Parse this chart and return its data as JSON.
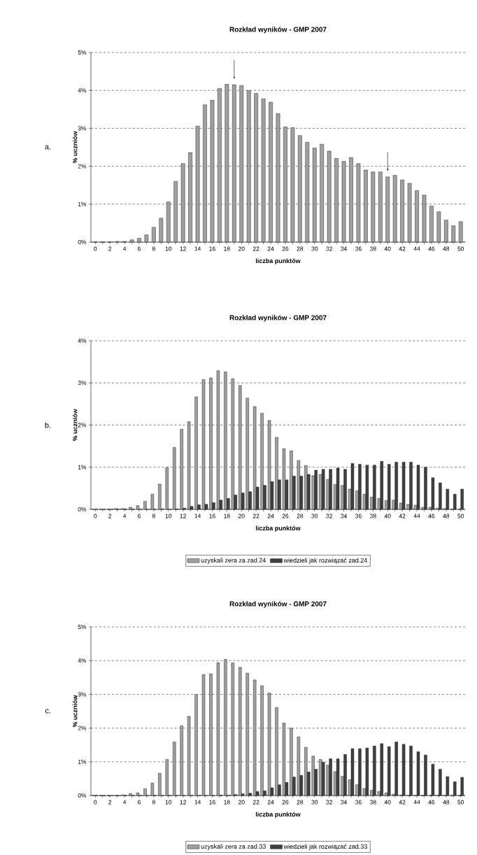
{
  "chart_data": [
    {
      "type": "bar",
      "title": "Rozkład wyników - GMP 2007",
      "xlabel": "liczba punktów",
      "ylabel": "% uczniów",
      "categories": [
        "0",
        null,
        "2",
        null,
        "4",
        null,
        "6",
        null,
        "8",
        null,
        "10",
        null,
        "12",
        null,
        "14",
        null,
        "16",
        null,
        "18",
        null,
        "20",
        null,
        "22",
        null,
        "24",
        null,
        "26",
        null,
        "28",
        null,
        "30",
        null,
        "32",
        null,
        "34",
        null,
        "36",
        null,
        "38",
        null,
        "40",
        null,
        "42",
        null,
        "44",
        null,
        "46",
        null,
        "48",
        null,
        "50"
      ],
      "values": [
        0,
        0,
        0,
        0.02,
        0.02,
        0.06,
        0.1,
        0.19,
        0.39,
        0.63,
        1.06,
        1.6,
        2.07,
        2.36,
        3.06,
        3.62,
        3.74,
        4.05,
        4.16,
        4.15,
        4.13,
        4.0,
        3.92,
        3.78,
        3.69,
        3.39,
        3.04,
        3.02,
        2.81,
        2.63,
        2.48,
        2.58,
        2.4,
        2.21,
        2.13,
        2.23,
        2.07,
        1.9,
        1.85,
        1.85,
        1.72,
        1.76,
        1.64,
        1.55,
        1.36,
        1.24,
        0.95,
        0.8,
        0.58,
        0.43,
        0.54
      ],
      "color": "#a0a0a0",
      "ylim": [
        0,
        5
      ],
      "yticks": [
        {
          "value": 0,
          "label": "0%"
        },
        {
          "value": 1,
          "label": "1%"
        },
        {
          "value": 2,
          "label": "2%"
        },
        {
          "value": 3,
          "label": "3%"
        },
        {
          "value": 4,
          "label": "4%"
        },
        {
          "value": 5,
          "label": "5%"
        }
      ],
      "grid": "y",
      "annotations": [
        "a."
      ]
    },
    {
      "type": "bar",
      "title": "Rozkład wyników - GMP 2007",
      "xlabel": "liczba punktów",
      "ylabel": "% uczniów",
      "categories": [
        "0",
        null,
        "2",
        null,
        "4",
        null,
        "6",
        null,
        "8",
        null,
        "10",
        null,
        "12",
        null,
        "14",
        null,
        "16",
        null,
        "18",
        null,
        "20",
        null,
        "22",
        null,
        "24",
        null,
        "26",
        null,
        "28",
        null,
        "30",
        null,
        "32",
        null,
        "34",
        null,
        "36",
        null,
        "38",
        null,
        "40",
        null,
        "42",
        null,
        "44",
        null,
        "46",
        null,
        "48",
        null,
        "50"
      ],
      "series": [
        {
          "name": "uzyskali zera za zad.24",
          "color": "#a0a0a0",
          "values": [
            0,
            0,
            0,
            0.02,
            0.02,
            0.05,
            0.09,
            0.19,
            0.36,
            0.6,
            0.99,
            1.47,
            1.9,
            2.08,
            2.67,
            3.08,
            3.12,
            3.29,
            3.26,
            3.1,
            2.94,
            2.64,
            2.44,
            2.28,
            2.11,
            1.71,
            1.44,
            1.39,
            1.16,
            1.04,
            0.8,
            0.83,
            0.71,
            0.59,
            0.57,
            0.48,
            0.44,
            0.36,
            0.29,
            0.26,
            0.21,
            0.22,
            0.15,
            0.12,
            0.1,
            0.05,
            0.05,
            0.03,
            0.02,
            0,
            0
          ]
        },
        {
          "name": "wiedzieli jak rozwiązać zad.24",
          "color": "#404040",
          "values": [
            0,
            0,
            0,
            0,
            0,
            0,
            0,
            0,
            0,
            0.01,
            0,
            0.01,
            0.03,
            0.07,
            0.11,
            0.12,
            0.16,
            0.22,
            0.26,
            0.34,
            0.39,
            0.42,
            0.53,
            0.57,
            0.66,
            0.7,
            0.7,
            0.79,
            0.79,
            0.83,
            0.93,
            0.95,
            0.95,
            0.98,
            0.95,
            1.09,
            1.07,
            1.05,
            1.05,
            1.14,
            1.07,
            1.12,
            1.12,
            1.12,
            1.05,
            1.0,
            0.75,
            0.63,
            0.48,
            0.36,
            0.48
          ]
        }
      ],
      "ylim": [
        0,
        4
      ],
      "yticks": [
        {
          "value": 0,
          "label": "0%"
        },
        {
          "value": 1,
          "label": "1%"
        },
        {
          "value": 2,
          "label": "2%"
        },
        {
          "value": 3,
          "label": "3%"
        },
        {
          "value": 4,
          "label": "4%"
        }
      ],
      "grid": "y",
      "legend": "bottom",
      "annotations": [
        "b."
      ]
    },
    {
      "type": "bar",
      "title": "Rozkład wyników - GMP 2007",
      "xlabel": "liczba punktów",
      "ylabel": "% uczniów",
      "categories": [
        "0",
        null,
        "2",
        null,
        "4",
        null,
        "6",
        null,
        "8",
        null,
        "10",
        null,
        "12",
        null,
        "14",
        null,
        "16",
        null,
        "18",
        null,
        "20",
        null,
        "22",
        null,
        "24",
        null,
        "26",
        null,
        "28",
        null,
        "30",
        null,
        "32",
        null,
        "34",
        null,
        "36",
        null,
        "38",
        null,
        "40",
        null,
        "42",
        null,
        "44",
        null,
        "46",
        null,
        "48",
        null,
        "50"
      ],
      "series": [
        {
          "name": "uzyskali zera za zad.33",
          "color": "#a0a0a0",
          "values": [
            0,
            0,
            0,
            0,
            0.02,
            0.06,
            0.08,
            0.2,
            0.37,
            0.66,
            1.07,
            1.59,
            2.07,
            2.35,
            3.0,
            3.59,
            3.61,
            3.94,
            4.04,
            3.93,
            3.8,
            3.63,
            3.43,
            3.26,
            3.04,
            2.61,
            2.15,
            2.0,
            1.74,
            1.43,
            1.17,
            1.07,
            0.9,
            0.71,
            0.57,
            0.47,
            0.32,
            0.21,
            0.16,
            0.12,
            0.08,
            0.04,
            0.02,
            0,
            0,
            0,
            0,
            0,
            0,
            0,
            0
          ]
        },
        {
          "name": "wiedzieli jak rozwiązać zad.33",
          "color": "#404040",
          "values": [
            0,
            0,
            0,
            0,
            0,
            0,
            0,
            0,
            0,
            0,
            0,
            0,
            0,
            0,
            0,
            0,
            0,
            0.01,
            0.01,
            0.03,
            0.05,
            0.07,
            0.12,
            0.14,
            0.23,
            0.32,
            0.39,
            0.55,
            0.6,
            0.7,
            0.78,
            0.99,
            1.09,
            1.09,
            1.22,
            1.39,
            1.39,
            1.41,
            1.47,
            1.54,
            1.45,
            1.59,
            1.52,
            1.47,
            1.3,
            1.2,
            0.93,
            0.78,
            0.56,
            0.41,
            0.54
          ]
        }
      ],
      "ylim": [
        0,
        5
      ],
      "yticks": [
        {
          "value": 0,
          "label": "0%"
        },
        {
          "value": 1,
          "label": "1%"
        },
        {
          "value": 2,
          "label": "2%"
        },
        {
          "value": 3,
          "label": "3%"
        },
        {
          "value": 4,
          "label": "4%"
        },
        {
          "value": 5,
          "label": "5%"
        }
      ],
      "grid": "y",
      "legend": "bottom",
      "annotations": [
        "c."
      ]
    }
  ]
}
